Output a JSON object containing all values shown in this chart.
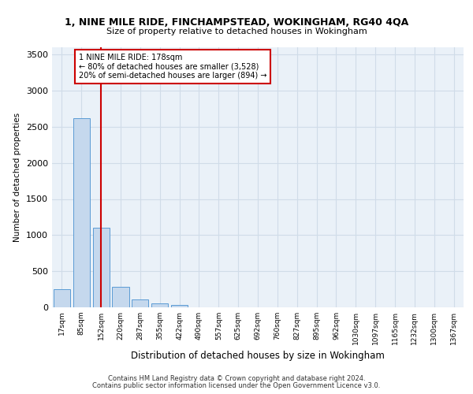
{
  "title": "1, NINE MILE RIDE, FINCHAMPSTEAD, WOKINGHAM, RG40 4QA",
  "subtitle": "Size of property relative to detached houses in Wokingham",
  "xlabel": "Distribution of detached houses by size in Wokingham",
  "ylabel": "Number of detached properties",
  "bar_color": "#c5d8ed",
  "bar_edge_color": "#5b9bd5",
  "bins": [
    "17sqm",
    "85sqm",
    "152sqm",
    "220sqm",
    "287sqm",
    "355sqm",
    "422sqm",
    "490sqm",
    "557sqm",
    "625sqm",
    "692sqm",
    "760sqm",
    "827sqm",
    "895sqm",
    "962sqm",
    "1030sqm",
    "1097sqm",
    "1165sqm",
    "1232sqm",
    "1300sqm",
    "1367sqm"
  ],
  "values": [
    250,
    2620,
    1100,
    285,
    105,
    55,
    35,
    0,
    0,
    0,
    0,
    0,
    0,
    0,
    0,
    0,
    0,
    0,
    0,
    0,
    0
  ],
  "ylim": [
    0,
    3600
  ],
  "yticks": [
    0,
    500,
    1000,
    1500,
    2000,
    2500,
    3000,
    3500
  ],
  "red_line_x": 2.0,
  "annotation_line1": "1 NINE MILE RIDE: 178sqm",
  "annotation_line2": "← 80% of detached houses are smaller (3,528)",
  "annotation_line3": "20% of semi-detached houses are larger (894) →",
  "red_line_color": "#cc0000",
  "annotation_box_edge": "#cc0000",
  "grid_color": "#d0dce8",
  "background_color": "#eaf1f8",
  "footer1": "Contains HM Land Registry data © Crown copyright and database right 2024.",
  "footer2": "Contains public sector information licensed under the Open Government Licence v3.0."
}
